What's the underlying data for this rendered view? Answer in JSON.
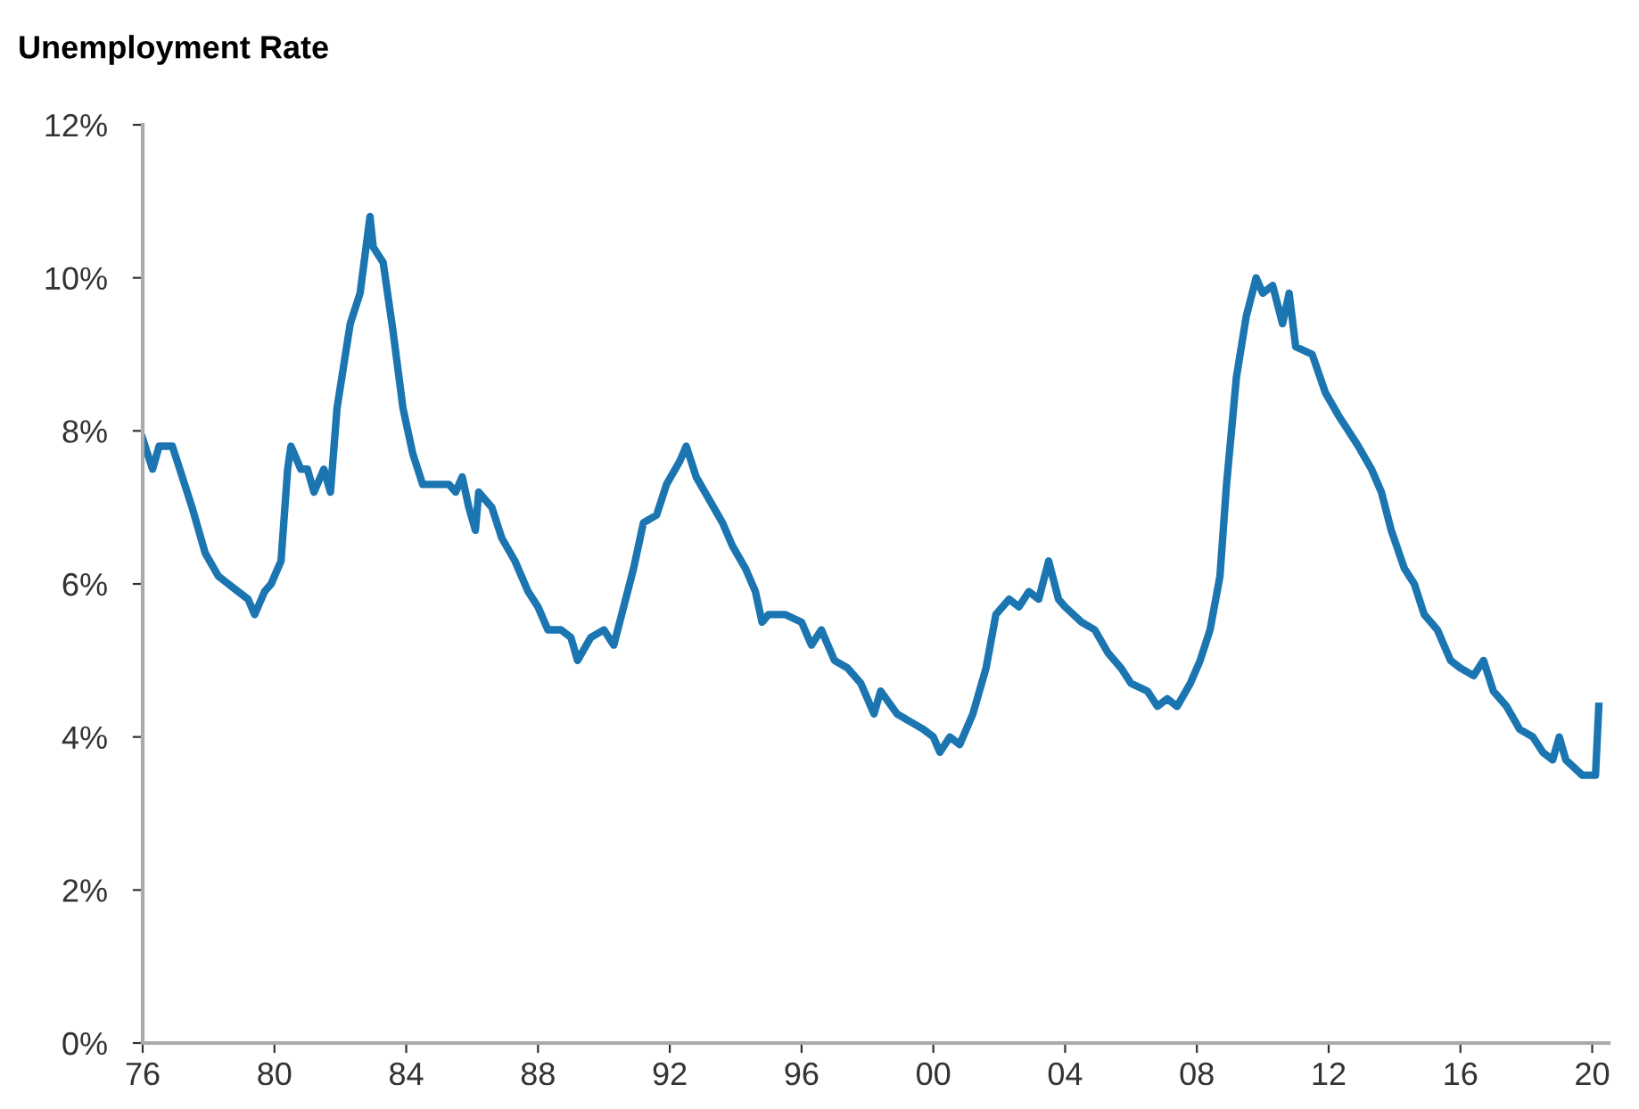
{
  "chart_data": {
    "type": "line",
    "title": "Unemployment Rate",
    "x": [
      1976.0,
      1976.3,
      1976.5,
      1976.9,
      1977.2,
      1977.5,
      1977.9,
      1978.3,
      1978.6,
      1978.9,
      1979.2,
      1979.4,
      1979.7,
      1979.9,
      1980.2,
      1980.4,
      1980.5,
      1980.8,
      1981.0,
      1981.2,
      1981.5,
      1981.7,
      1981.9,
      1982.3,
      1982.6,
      1982.9,
      1983.0,
      1983.3,
      1983.6,
      1983.9,
      1984.2,
      1984.5,
      1984.9,
      1985.3,
      1985.5,
      1985.7,
      1985.9,
      1986.1,
      1986.2,
      1986.6,
      1986.9,
      1987.3,
      1987.7,
      1988.0,
      1988.3,
      1988.7,
      1989.0,
      1989.2,
      1989.6,
      1990.0,
      1990.3,
      1990.6,
      1990.9,
      1991.2,
      1991.6,
      1991.9,
      1992.3,
      1992.5,
      1992.8,
      1993.2,
      1993.6,
      1993.9,
      1994.3,
      1994.6,
      1994.8,
      1995.0,
      1995.5,
      1996.0,
      1996.3,
      1996.6,
      1997.0,
      1997.4,
      1997.8,
      1998.2,
      1998.4,
      1998.9,
      1999.3,
      1999.7,
      2000.0,
      2000.2,
      2000.5,
      2000.8,
      2001.2,
      2001.6,
      2001.9,
      2002.3,
      2002.6,
      2002.9,
      2003.2,
      2003.5,
      2003.8,
      2004.0,
      2004.5,
      2004.9,
      2005.3,
      2005.7,
      2006.0,
      2006.5,
      2006.8,
      2007.1,
      2007.4,
      2007.8,
      2008.1,
      2008.4,
      2008.7,
      2008.9,
      2009.2,
      2009.5,
      2009.8,
      2010.0,
      2010.3,
      2010.6,
      2010.8,
      2011.0,
      2011.5,
      2011.9,
      2012.3,
      2012.6,
      2012.9,
      2013.3,
      2013.6,
      2013.9,
      2014.3,
      2014.6,
      2014.9,
      2015.3,
      2015.7,
      2016.0,
      2016.4,
      2016.7,
      2017.0,
      2017.4,
      2017.8,
      2018.2,
      2018.5,
      2018.8,
      2019.0,
      2019.2,
      2019.7,
      2020.0,
      2020.1,
      2020.2
    ],
    "series": [
      {
        "color": "#1a75b0",
        "values": [
          7.9,
          7.5,
          7.8,
          7.8,
          7.4,
          7.0,
          6.4,
          6.1,
          6.0,
          5.9,
          5.8,
          5.6,
          5.9,
          6.0,
          6.3,
          7.5,
          7.8,
          7.5,
          7.5,
          7.2,
          7.5,
          7.2,
          8.3,
          9.4,
          9.8,
          10.8,
          10.4,
          10.2,
          9.3,
          8.3,
          7.7,
          7.3,
          7.3,
          7.3,
          7.2,
          7.4,
          7.0,
          6.7,
          7.2,
          7.0,
          6.6,
          6.3,
          5.9,
          5.7,
          5.4,
          5.4,
          5.3,
          5.0,
          5.3,
          5.4,
          5.2,
          5.7,
          6.2,
          6.8,
          6.9,
          7.3,
          7.6,
          7.8,
          7.4,
          7.1,
          6.8,
          6.5,
          6.2,
          5.9,
          5.5,
          5.6,
          5.6,
          5.5,
          5.2,
          5.4,
          5.0,
          4.9,
          4.7,
          4.3,
          4.6,
          4.3,
          4.2,
          4.1,
          4.0,
          3.8,
          4.0,
          3.9,
          4.3,
          4.9,
          5.6,
          5.8,
          5.7,
          5.9,
          5.8,
          6.3,
          5.8,
          5.7,
          5.5,
          5.4,
          5.1,
          4.9,
          4.7,
          4.6,
          4.4,
          4.5,
          4.4,
          4.7,
          5.0,
          5.4,
          6.1,
          7.3,
          8.7,
          9.5,
          10.0,
          9.8,
          9.9,
          9.4,
          9.8,
          9.1,
          9.0,
          8.5,
          8.2,
          8.0,
          7.8,
          7.5,
          7.2,
          6.7,
          6.2,
          6.0,
          5.6,
          5.4,
          5.0,
          4.9,
          4.8,
          5.0,
          4.6,
          4.4,
          4.1,
          4.0,
          3.8,
          3.7,
          4.0,
          3.7,
          3.5,
          3.5,
          3.5,
          4.4
        ]
      }
    ],
    "xlim": [
      1976,
      2020.5
    ],
    "xticks": [
      {
        "value": 1976,
        "label": "76"
      },
      {
        "value": 1980,
        "label": "80"
      },
      {
        "value": 1984,
        "label": "84"
      },
      {
        "value": 1988,
        "label": "88"
      },
      {
        "value": 1992,
        "label": "92"
      },
      {
        "value": 1996,
        "label": "96"
      },
      {
        "value": 2000,
        "label": "00"
      },
      {
        "value": 2004,
        "label": "04"
      },
      {
        "value": 2008,
        "label": "08"
      },
      {
        "value": 2012,
        "label": "12"
      },
      {
        "value": 2016,
        "label": "16"
      },
      {
        "value": 2020,
        "label": "20"
      }
    ],
    "ylim": [
      0,
      12
    ],
    "yticks": [
      {
        "value": 0,
        "label": "0%"
      },
      {
        "value": 2,
        "label": "2%"
      },
      {
        "value": 4,
        "label": "4%"
      },
      {
        "value": 6,
        "label": "6%"
      },
      {
        "value": 8,
        "label": "8%"
      },
      {
        "value": 10,
        "label": "10%"
      },
      {
        "value": 12,
        "label": "12%"
      }
    ],
    "grid": false
  }
}
